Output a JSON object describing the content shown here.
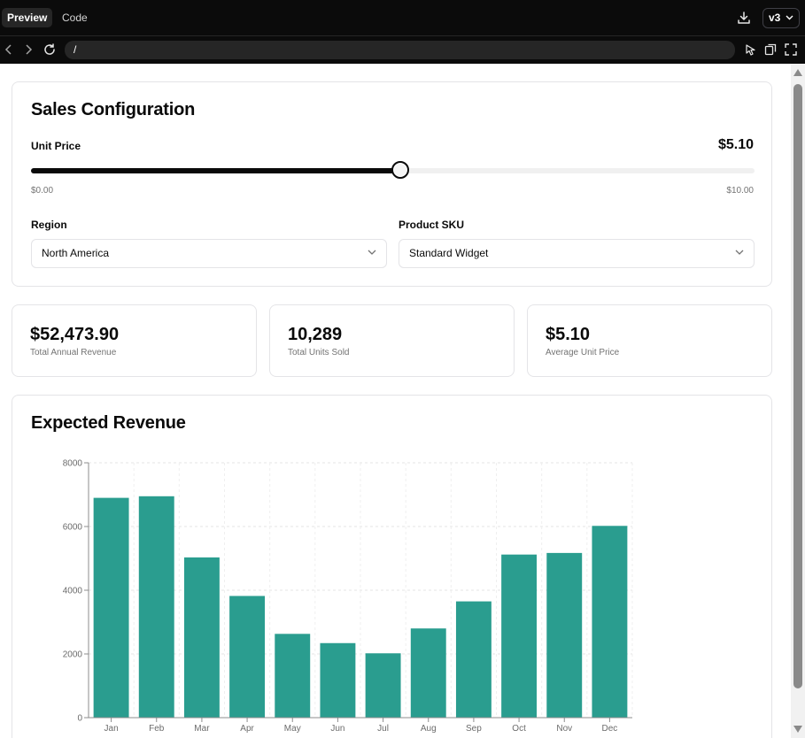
{
  "browser": {
    "tabs": [
      {
        "label": "Preview",
        "active": true
      },
      {
        "label": "Code",
        "active": false
      }
    ],
    "version": "v3",
    "url": "/"
  },
  "config": {
    "title": "Sales Configuration",
    "unit_price_label": "Unit Price",
    "unit_price_value": "$5.10",
    "slider": {
      "min_label": "$0.00",
      "max_label": "$10.00",
      "value": 5.1,
      "min": 0,
      "max": 10
    },
    "region_label": "Region",
    "region_value": "North America",
    "sku_label": "Product SKU",
    "sku_value": "Standard Widget"
  },
  "stats": [
    {
      "value": "$52,473.90",
      "label": "Total Annual Revenue"
    },
    {
      "value": "10,289",
      "label": "Total Units Sold"
    },
    {
      "value": "$5.10",
      "label": "Average Unit Price"
    }
  ],
  "chart": {
    "title": "Expected Revenue"
  },
  "chart_data": {
    "type": "bar",
    "title": "Expected Revenue",
    "categories": [
      "Jan",
      "Feb",
      "Mar",
      "Apr",
      "May",
      "Jun",
      "Jul",
      "Aug",
      "Sep",
      "Oct",
      "Nov",
      "Dec"
    ],
    "values": [
      6900,
      6950,
      5030,
      3820,
      2630,
      2340,
      2020,
      2800,
      3650,
      5120,
      5170,
      6020
    ],
    "ylim": [
      0,
      8000
    ],
    "yticks": [
      0,
      2000,
      4000,
      6000,
      8000
    ],
    "grid": true,
    "color": "#2a9d8f"
  },
  "colors": {
    "accent": "#2a9d8f",
    "text": "#0a0a0a",
    "muted": "#737373",
    "border": "#e4e4e7"
  }
}
